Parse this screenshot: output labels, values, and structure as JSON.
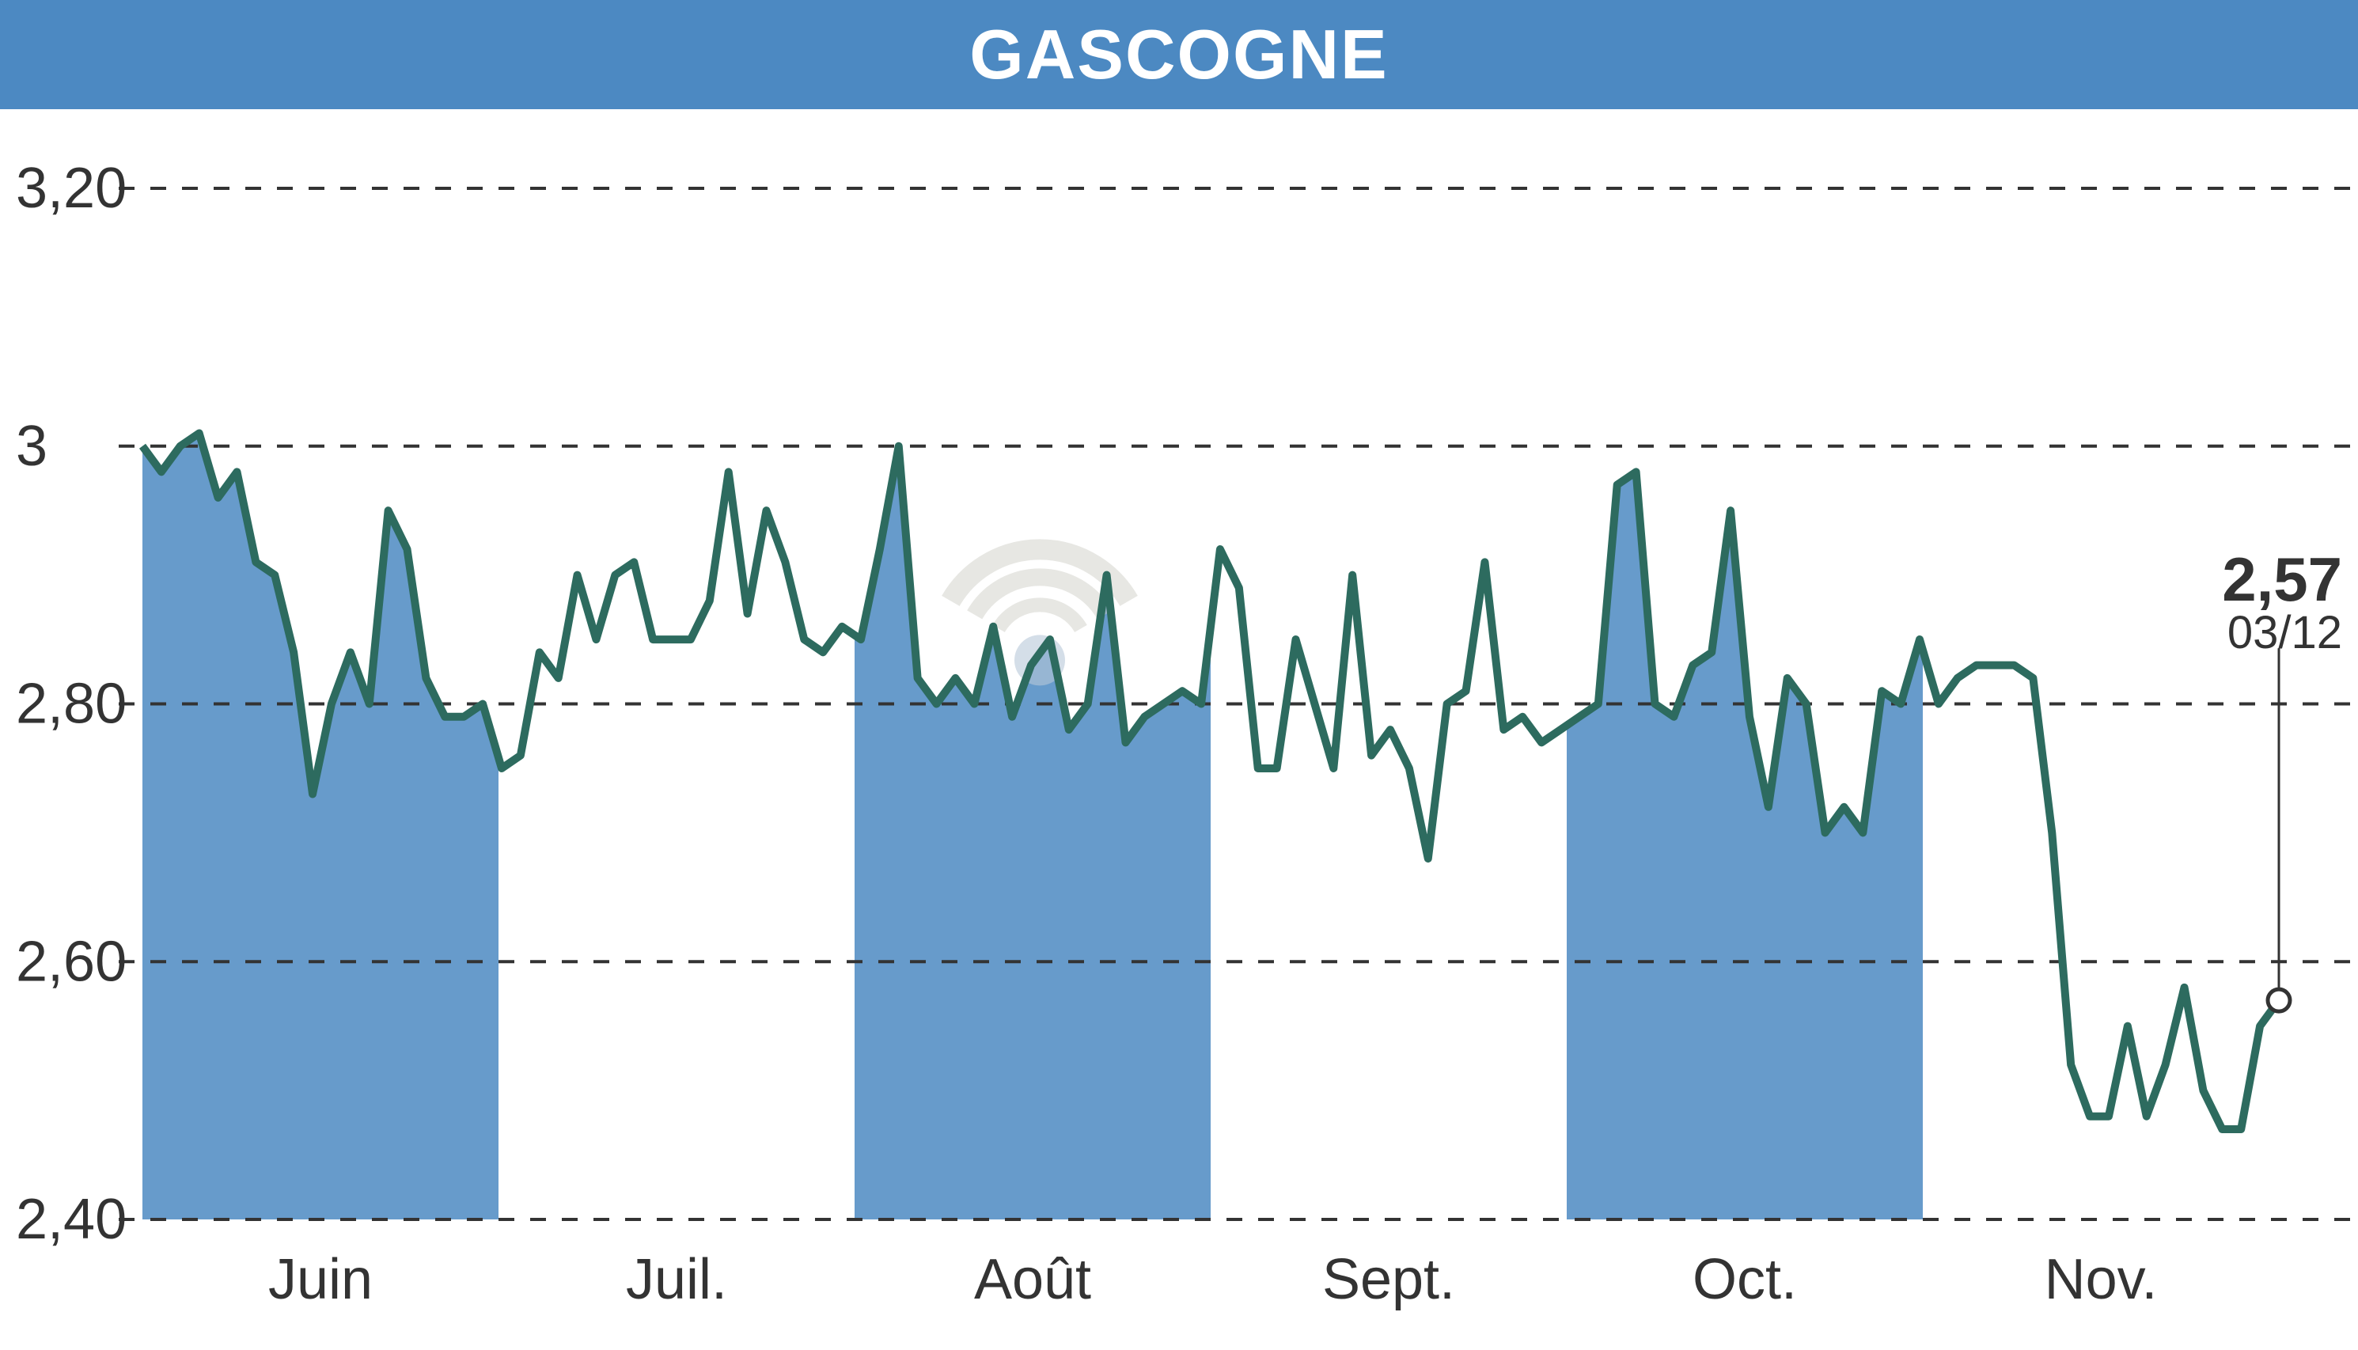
{
  "header": {
    "title": "GASCOGNE",
    "background_color": "#4c89c2",
    "text_color": "#ffffff",
    "title_fontsize": 88
  },
  "chart": {
    "type": "line",
    "background_color": "#ffffff",
    "line_color": "#2d6b5f",
    "line_width": 10,
    "band_color": "#4c89c2",
    "grid_color": "#333333",
    "y_axis": {
      "min": 2.4,
      "max": 3.2,
      "ticks": [
        2.4,
        2.6,
        2.8,
        3.0,
        3.2
      ],
      "tick_labels": [
        "2,40",
        "2,60",
        "2,80",
        "3",
        "3,20"
      ],
      "label_fontsize": 72,
      "label_color": "#333333"
    },
    "x_axis": {
      "months": [
        "Juin",
        "Juil.",
        "Août",
        "Sept.",
        "Oct.",
        "Nov."
      ],
      "label_fontsize": 72,
      "label_color": "#333333",
      "banded_months": [
        0,
        2,
        4
      ]
    },
    "end_point": {
      "value": "2,57",
      "date": "03/12",
      "value_fontsize": 78,
      "date_fontsize": 58,
      "marker_radius": 14
    },
    "data": [
      3.0,
      2.98,
      3.0,
      3.01,
      2.96,
      2.98,
      2.91,
      2.9,
      2.84,
      2.73,
      2.8,
      2.84,
      2.8,
      2.95,
      2.92,
      2.82,
      2.79,
      2.79,
      2.8,
      2.75,
      2.76,
      2.84,
      2.82,
      2.9,
      2.85,
      2.9,
      2.91,
      2.85,
      2.85,
      2.85,
      2.88,
      2.98,
      2.87,
      2.95,
      2.91,
      2.85,
      2.84,
      2.86,
      2.85,
      2.92,
      3.0,
      2.82,
      2.8,
      2.82,
      2.8,
      2.86,
      2.79,
      2.83,
      2.85,
      2.78,
      2.8,
      2.9,
      2.77,
      2.79,
      2.8,
      2.81,
      2.8,
      2.92,
      2.89,
      2.75,
      2.75,
      2.85,
      2.8,
      2.75,
      2.9,
      2.76,
      2.78,
      2.75,
      2.68,
      2.8,
      2.81,
      2.91,
      2.78,
      2.79,
      2.77,
      2.78,
      2.79,
      2.8,
      2.97,
      2.98,
      2.8,
      2.79,
      2.83,
      2.84,
      2.95,
      2.79,
      2.72,
      2.82,
      2.8,
      2.7,
      2.72,
      2.7,
      2.81,
      2.8,
      2.85,
      2.8,
      2.82,
      2.83,
      2.83,
      2.83,
      2.82,
      2.7,
      2.52,
      2.48,
      2.48,
      2.55,
      2.48,
      2.52,
      2.58,
      2.5,
      2.47,
      2.47,
      2.55,
      2.57
    ]
  }
}
